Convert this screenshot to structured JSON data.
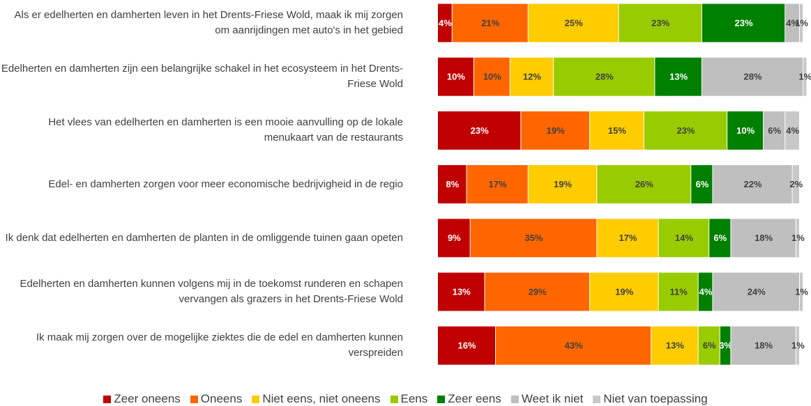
{
  "chart_data": {
    "type": "stacked_bar_horizontal",
    "categories": [
      "Als er edelherten en damherten leven in het Drents-Friese Wold, maak ik mij zorgen om aanrijdingen met auto's in het gebied",
      "Edelherten en damherten zijn een belangrijke schakel in het ecosysteem in het Drents-Friese Wold",
      "Het vlees van edelherten en damherten is een mooie aanvulling op de lokale menukaart van de restaurants",
      "Edel- en damherten zorgen voor meer economische bedrijvigheid in de regio",
      "Ik denk dat edelherten en damherten de planten in de omliggende tuinen gaan opeten",
      "Edelherten en damherten kunnen volgens mij in de toekomst runderen en schapen vervangen als grazers in het Drents-Friese Wold",
      "Ik maak mij zorgen over de mogelijke ziektes die de edel en damherten kunnen verspreiden"
    ],
    "xlim": [
      0,
      100
    ],
    "series": [
      {
        "name": "Zeer oneens",
        "color": "#c00000",
        "values": [
          4,
          10,
          23,
          8,
          9,
          13,
          16
        ],
        "value_labels": [
          "4%",
          "10%",
          "23%",
          "8%",
          "9%",
          "13%",
          "16%"
        ]
      },
      {
        "name": "Oneens",
        "color": "#ff6600",
        "values": [
          21,
          10,
          19,
          17,
          35,
          29,
          43
        ],
        "value_labels": [
          "21%",
          "10%",
          "19%",
          "17%",
          "35%",
          "29%",
          "43%"
        ]
      },
      {
        "name": "Niet eens, niet oneens",
        "color": "#ffcc00",
        "values": [
          25,
          12,
          15,
          19,
          17,
          19,
          13
        ],
        "value_labels": [
          "25%",
          "12%",
          "15%",
          "19%",
          "17%",
          "19%",
          "13%"
        ]
      },
      {
        "name": "Eens",
        "color": "#99cc00",
        "values": [
          23,
          28,
          23,
          26,
          14,
          11,
          6
        ],
        "value_labels": [
          "23%",
          "28%",
          "23%",
          "26%",
          "14%",
          "11%",
          "6%"
        ]
      },
      {
        "name": "Zeer eens",
        "color": "#008000",
        "values": [
          23,
          13,
          10,
          6,
          6,
          4,
          3
        ],
        "value_labels": [
          "23%",
          "13%",
          "10%",
          "6%",
          "6%",
          "4%",
          "3%"
        ]
      },
      {
        "name": "Weet ik niet",
        "color": "#bfbfbf",
        "values": [
          4,
          28,
          6,
          22,
          18,
          24,
          18
        ],
        "value_labels": [
          "4%",
          "28%",
          "6%",
          "22%",
          "18%",
          "24%",
          "18%"
        ]
      },
      {
        "name": "Niet van toepassing",
        "color": "#c8c8c8",
        "values": [
          1,
          1,
          4,
          2,
          1,
          1,
          1
        ],
        "value_labels": [
          "1%",
          "1%",
          "4%",
          "2%",
          "1%",
          "1%",
          "1%"
        ]
      }
    ]
  }
}
